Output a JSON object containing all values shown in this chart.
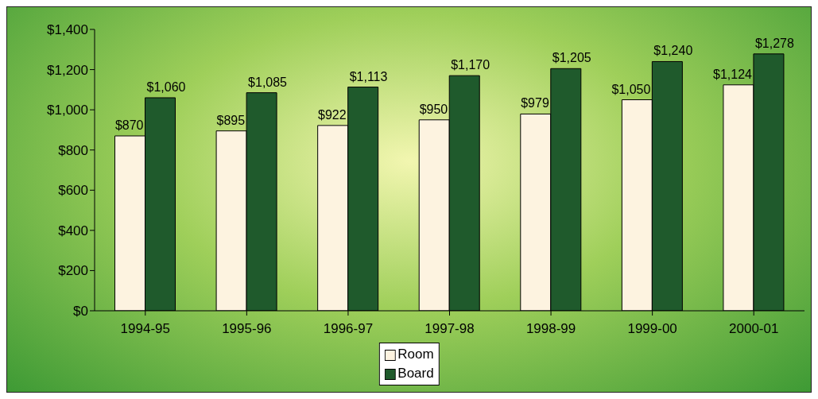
{
  "chart_data": {
    "type": "bar",
    "categories": [
      "1994-95",
      "1995-96",
      "1996-97",
      "1997-98",
      "1998-99",
      "1999-00",
      "2000-01"
    ],
    "series": [
      {
        "name": "Room",
        "color": "#fdf3e0",
        "values": [
          870,
          895,
          922,
          950,
          979,
          1050,
          1124
        ],
        "value_labels": [
          "$870",
          "$895",
          "$922",
          "$950",
          "$979",
          "$1,050",
          "$1,124"
        ]
      },
      {
        "name": "Board",
        "color": "#1f5a2c",
        "values": [
          1060,
          1085,
          1113,
          1170,
          1205,
          1240,
          1278
        ],
        "value_labels": [
          "$1,060",
          "$1,085",
          "$1,113",
          "$1,170",
          "$1,205",
          "$1,240",
          "$1,278"
        ]
      }
    ],
    "ylim": [
      0,
      1400
    ],
    "yticks": [
      {
        "value": 0,
        "label": "$0"
      },
      {
        "value": 200,
        "label": "$200"
      },
      {
        "value": 400,
        "label": "$400"
      },
      {
        "value": 600,
        "label": "$600"
      },
      {
        "value": 800,
        "label": "$800"
      },
      {
        "value": 1000,
        "label": "$1,000"
      },
      {
        "value": 1200,
        "label": "$1,200"
      },
      {
        "value": 1400,
        "label": "$1,400"
      }
    ],
    "grid": false,
    "legend": "bottom"
  }
}
